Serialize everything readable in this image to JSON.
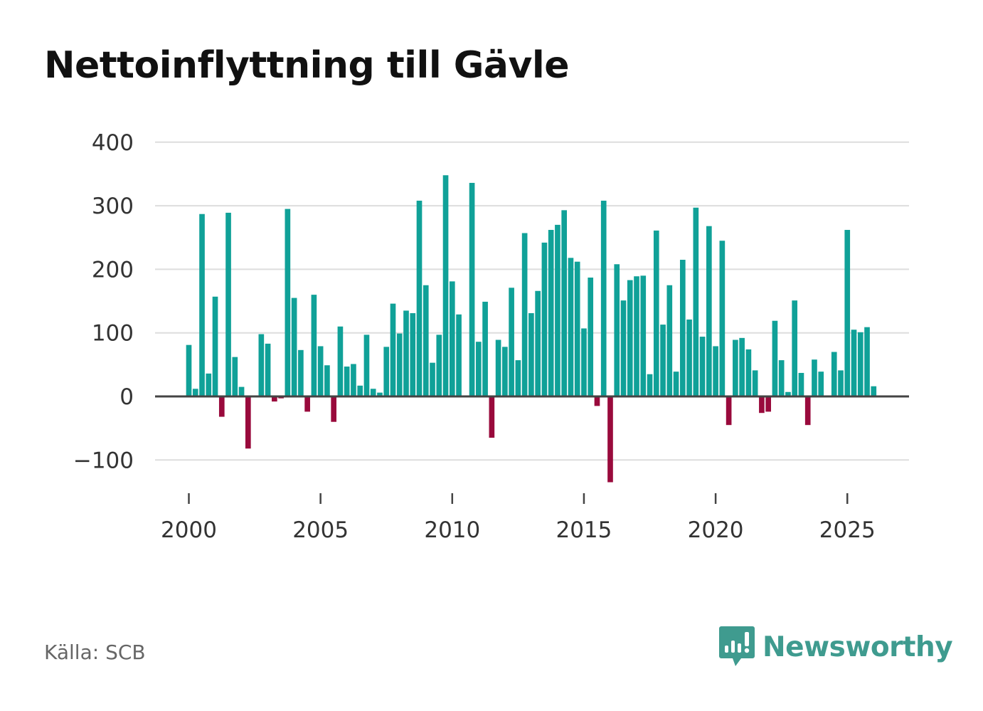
{
  "title": "Nettoinflyttning till Gävle",
  "source": "Källa: SCB",
  "brand": {
    "name": "Newsworthy",
    "icon": "newsworthy-logo-icon",
    "color": "#3f9b8f"
  },
  "colors": {
    "positive": "#10a198",
    "negative": "#990a3c",
    "grid": "#dddddd",
    "zero_line": "#444444"
  },
  "chart_data": {
    "type": "bar",
    "title": "Nettoinflyttning till Gävle",
    "xlabel": "",
    "ylabel": "",
    "ylim": [
      -130,
      400
    ],
    "yticks": [
      400,
      300,
      200,
      100,
      0,
      -100
    ],
    "ytick_labels": [
      "400",
      "300",
      "200",
      "100",
      "0",
      "−100"
    ],
    "xticks": [
      2000,
      2005,
      2010,
      2015,
      2020,
      2025
    ],
    "xtick_labels": [
      "2000",
      "2005",
      "2010",
      "2015",
      "2020",
      "2025"
    ],
    "xlim": [
      1999.5,
      2028.0
    ],
    "grid": true,
    "frequency": "quarterly",
    "start": 2000.0,
    "values": [
      81,
      12,
      287,
      36,
      157,
      -32,
      289,
      62,
      15,
      -82,
      0,
      98,
      83,
      -8,
      -3,
      295,
      155,
      73,
      -24,
      160,
      79,
      49,
      -40,
      110,
      47,
      51,
      17,
      97,
      12,
      6,
      78,
      146,
      99,
      135,
      131,
      308,
      175,
      53,
      97,
      348,
      181,
      129,
      0,
      336,
      86,
      149,
      -65,
      89,
      78,
      171,
      57,
      257,
      131,
      166,
      242,
      262,
      270,
      293,
      218,
      212,
      107,
      187,
      -15,
      308,
      -135,
      208,
      151,
      183,
      189,
      190,
      35,
      261,
      113,
      175,
      39,
      215,
      121,
      297,
      94,
      268,
      79,
      245,
      -45,
      89,
      92,
      74,
      41,
      -26,
      -24,
      119,
      57,
      7,
      151,
      37,
      -45,
      58,
      39,
      0,
      70,
      41,
      262,
      105,
      101,
      109,
      16
    ]
  }
}
